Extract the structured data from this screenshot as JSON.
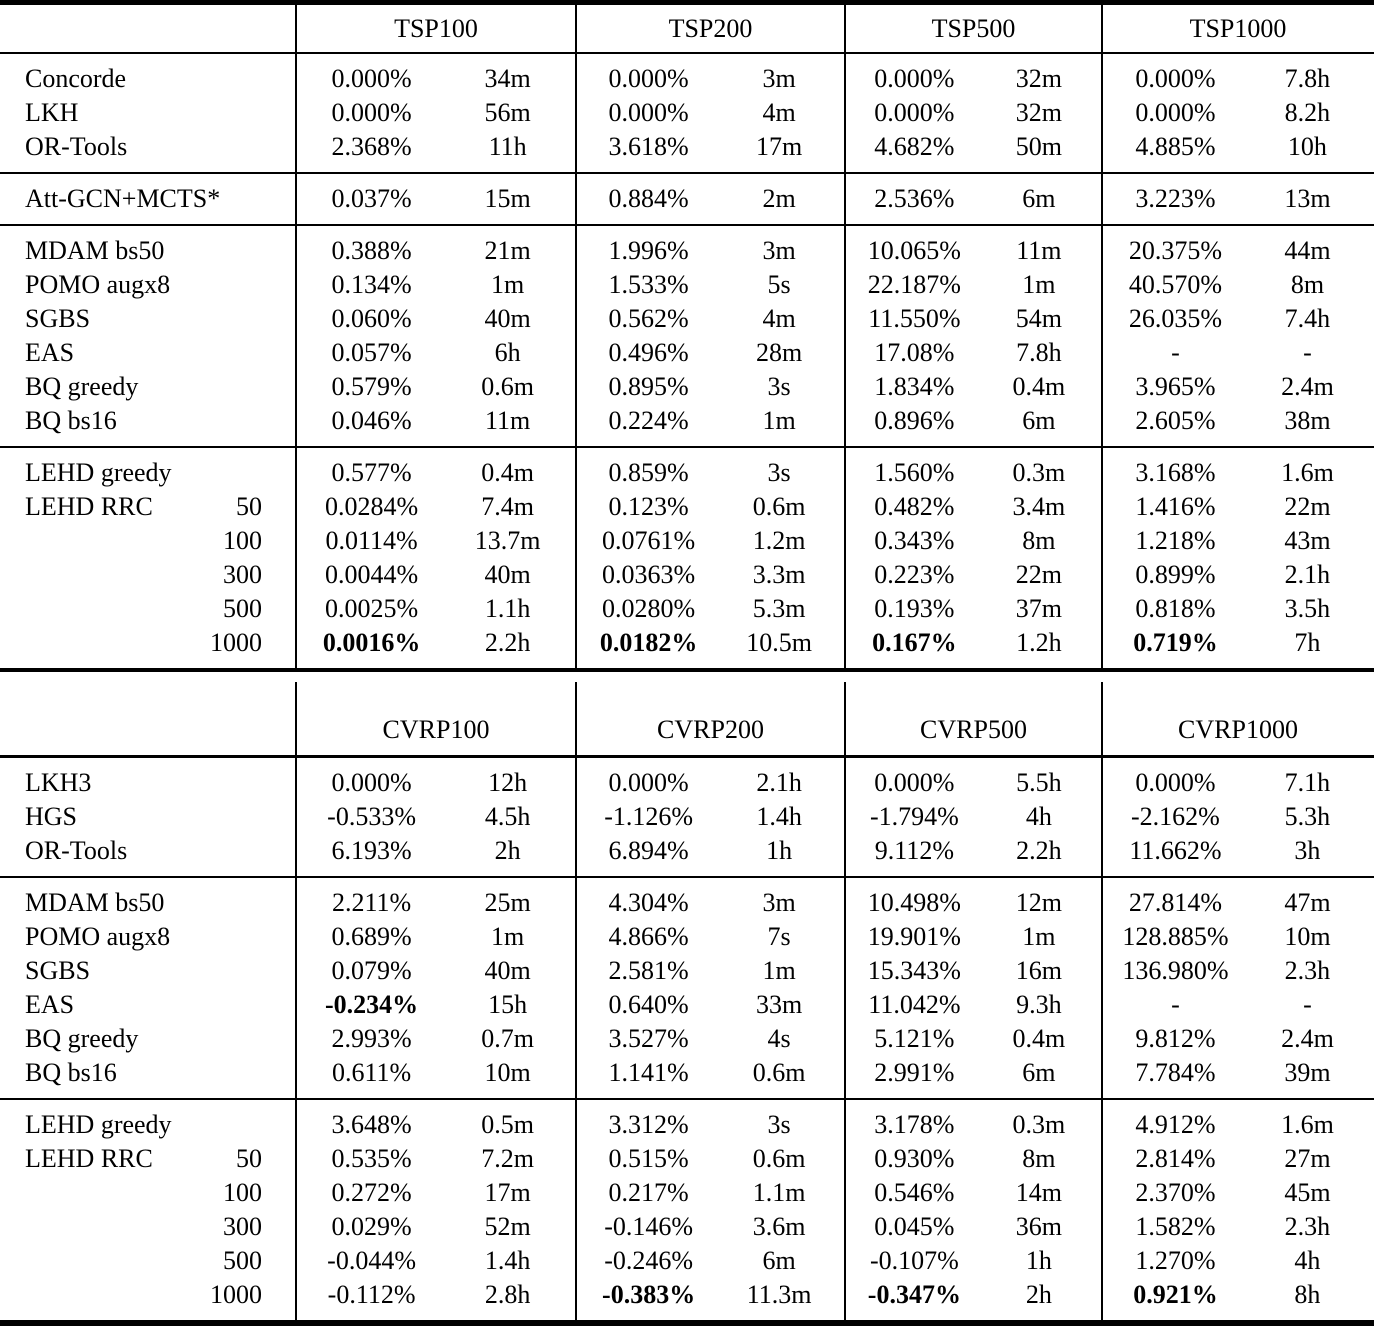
{
  "page": {
    "background": "#ffffff",
    "text_color": "#000000"
  },
  "tables": [
    {
      "name": "tsp",
      "columns": [
        "TSP100",
        "TSP200",
        "TSP500",
        "TSP1000"
      ],
      "sections": [
        {
          "rows": [
            {
              "label": "Concorde",
              "cells": [
                {
                  "gap": "0.000%",
                  "time": "34m"
                },
                {
                  "gap": "0.000%",
                  "time": "3m"
                },
                {
                  "gap": "0.000%",
                  "time": "32m"
                },
                {
                  "gap": "0.000%",
                  "time": "7.8h"
                }
              ]
            },
            {
              "label": "LKH",
              "cells": [
                {
                  "gap": "0.000%",
                  "time": "56m"
                },
                {
                  "gap": "0.000%",
                  "time": "4m"
                },
                {
                  "gap": "0.000%",
                  "time": "32m"
                },
                {
                  "gap": "0.000%",
                  "time": "8.2h"
                }
              ]
            },
            {
              "label": "OR-Tools",
              "cells": [
                {
                  "gap": "2.368%",
                  "time": "11h"
                },
                {
                  "gap": "3.618%",
                  "time": "17m"
                },
                {
                  "gap": "4.682%",
                  "time": "50m"
                },
                {
                  "gap": "4.885%",
                  "time": "10h"
                }
              ]
            }
          ]
        },
        {
          "rows": [
            {
              "label": "Att-GCN+MCTS*",
              "cells": [
                {
                  "gap": "0.037%",
                  "time": "15m"
                },
                {
                  "gap": "0.884%",
                  "time": "2m"
                },
                {
                  "gap": "2.536%",
                  "time": "6m"
                },
                {
                  "gap": "3.223%",
                  "time": "13m"
                }
              ]
            }
          ]
        },
        {
          "rows": [
            {
              "label": "MDAM bs50",
              "cells": [
                {
                  "gap": "0.388%",
                  "time": "21m"
                },
                {
                  "gap": "1.996%",
                  "time": "3m"
                },
                {
                  "gap": "10.065%",
                  "time": "11m"
                },
                {
                  "gap": "20.375%",
                  "time": "44m"
                }
              ]
            },
            {
              "label": "POMO augx8",
              "cells": [
                {
                  "gap": "0.134%",
                  "time": "1m"
                },
                {
                  "gap": "1.533%",
                  "time": "5s"
                },
                {
                  "gap": "22.187%",
                  "time": "1m"
                },
                {
                  "gap": "40.570%",
                  "time": "8m"
                }
              ]
            },
            {
              "label": "SGBS",
              "cells": [
                {
                  "gap": "0.060%",
                  "time": "40m"
                },
                {
                  "gap": "0.562%",
                  "time": "4m"
                },
                {
                  "gap": "11.550%",
                  "time": "54m"
                },
                {
                  "gap": "26.035%",
                  "time": "7.4h"
                }
              ]
            },
            {
              "label": "EAS",
              "cells": [
                {
                  "gap": "0.057%",
                  "time": "6h"
                },
                {
                  "gap": "0.496%",
                  "time": "28m"
                },
                {
                  "gap": "17.08%",
                  "time": "7.8h"
                },
                {
                  "gap": "-",
                  "time": "-"
                }
              ]
            },
            {
              "label": "BQ greedy",
              "cells": [
                {
                  "gap": "0.579%",
                  "time": "0.6m"
                },
                {
                  "gap": "0.895%",
                  "time": "3s"
                },
                {
                  "gap": "1.834%",
                  "time": "0.4m"
                },
                {
                  "gap": "3.965%",
                  "time": "2.4m"
                }
              ]
            },
            {
              "label": "BQ bs16",
              "cells": [
                {
                  "gap": "0.046%",
                  "time": "11m"
                },
                {
                  "gap": "0.224%",
                  "time": "1m"
                },
                {
                  "gap": "0.896%",
                  "time": "6m"
                },
                {
                  "gap": "2.605%",
                  "time": "38m"
                }
              ]
            }
          ]
        },
        {
          "rows": [
            {
              "label": "LEHD greedy",
              "cells": [
                {
                  "gap": "0.577%",
                  "time": "0.4m"
                },
                {
                  "gap": "0.859%",
                  "time": "3s"
                },
                {
                  "gap": "1.560%",
                  "time": "0.3m"
                },
                {
                  "gap": "3.168%",
                  "time": "1.6m"
                }
              ]
            },
            {
              "label": "LEHD RRC",
              "iter": "50",
              "cells": [
                {
                  "gap": "0.0284%",
                  "time": "7.4m"
                },
                {
                  "gap": "0.123%",
                  "time": "0.6m"
                },
                {
                  "gap": "0.482%",
                  "time": "3.4m"
                },
                {
                  "gap": "1.416%",
                  "time": "22m"
                }
              ]
            },
            {
              "label": "",
              "iter": "100",
              "cells": [
                {
                  "gap": "0.0114%",
                  "time": "13.7m"
                },
                {
                  "gap": "0.0761%",
                  "time": "1.2m"
                },
                {
                  "gap": "0.343%",
                  "time": "8m"
                },
                {
                  "gap": "1.218%",
                  "time": "43m"
                }
              ]
            },
            {
              "label": "",
              "iter": "300",
              "cells": [
                {
                  "gap": "0.0044%",
                  "time": "40m"
                },
                {
                  "gap": "0.0363%",
                  "time": "3.3m"
                },
                {
                  "gap": "0.223%",
                  "time": "22m"
                },
                {
                  "gap": "0.899%",
                  "time": "2.1h"
                }
              ]
            },
            {
              "label": "",
              "iter": "500",
              "cells": [
                {
                  "gap": "0.0025%",
                  "time": "1.1h"
                },
                {
                  "gap": "0.0280%",
                  "time": "5.3m"
                },
                {
                  "gap": "0.193%",
                  "time": "37m"
                },
                {
                  "gap": "0.818%",
                  "time": "3.5h"
                }
              ]
            },
            {
              "label": "",
              "iter": "1000",
              "cells": [
                {
                  "gap": "0.0016%",
                  "time": "2.2h",
                  "bold": true
                },
                {
                  "gap": "0.0182%",
                  "time": "10.5m",
                  "bold": true
                },
                {
                  "gap": "0.167%",
                  "time": "1.2h",
                  "bold": true
                },
                {
                  "gap": "0.719%",
                  "time": "7h",
                  "bold": true
                }
              ]
            }
          ]
        }
      ]
    },
    {
      "name": "cvrp",
      "columns": [
        "CVRP100",
        "CVRP200",
        "CVRP500",
        "CVRP1000"
      ],
      "sections": [
        {
          "rows": [
            {
              "label": "LKH3",
              "cells": [
                {
                  "gap": "0.000%",
                  "time": "12h"
                },
                {
                  "gap": "0.000%",
                  "time": "2.1h"
                },
                {
                  "gap": "0.000%",
                  "time": "5.5h"
                },
                {
                  "gap": "0.000%",
                  "time": "7.1h"
                }
              ]
            },
            {
              "label": "HGS",
              "cells": [
                {
                  "gap": "-0.533%",
                  "time": "4.5h"
                },
                {
                  "gap": "-1.126%",
                  "time": "1.4h"
                },
                {
                  "gap": "-1.794%",
                  "time": "4h"
                },
                {
                  "gap": "-2.162%",
                  "time": "5.3h"
                }
              ]
            },
            {
              "label": "OR-Tools",
              "cells": [
                {
                  "gap": "6.193%",
                  "time": "2h"
                },
                {
                  "gap": "6.894%",
                  "time": "1h"
                },
                {
                  "gap": "9.112%",
                  "time": "2.2h"
                },
                {
                  "gap": "11.662%",
                  "time": "3h"
                }
              ]
            }
          ]
        },
        {
          "rows": [
            {
              "label": "MDAM bs50",
              "cells": [
                {
                  "gap": "2.211%",
                  "time": "25m"
                },
                {
                  "gap": "4.304%",
                  "time": "3m"
                },
                {
                  "gap": "10.498%",
                  "time": "12m"
                },
                {
                  "gap": "27.814%",
                  "time": "47m"
                }
              ]
            },
            {
              "label": "POMO augx8",
              "cells": [
                {
                  "gap": "0.689%",
                  "time": "1m"
                },
                {
                  "gap": "4.866%",
                  "time": "7s"
                },
                {
                  "gap": "19.901%",
                  "time": "1m"
                },
                {
                  "gap": "128.885%",
                  "time": "10m"
                }
              ]
            },
            {
              "label": "SGBS",
              "cells": [
                {
                  "gap": "0.079%",
                  "time": "40m"
                },
                {
                  "gap": "2.581%",
                  "time": "1m"
                },
                {
                  "gap": "15.343%",
                  "time": "16m"
                },
                {
                  "gap": "136.980%",
                  "time": "2.3h"
                }
              ]
            },
            {
              "label": "EAS",
              "cells": [
                {
                  "gap": "-0.234%",
                  "time": "15h",
                  "bold": true
                },
                {
                  "gap": "0.640%",
                  "time": "33m"
                },
                {
                  "gap": "11.042%",
                  "time": "9.3h"
                },
                {
                  "gap": "-",
                  "time": "-"
                }
              ]
            },
            {
              "label": "BQ greedy",
              "cells": [
                {
                  "gap": "2.993%",
                  "time": "0.7m"
                },
                {
                  "gap": "3.527%",
                  "time": "4s"
                },
                {
                  "gap": "5.121%",
                  "time": "0.4m"
                },
                {
                  "gap": "9.812%",
                  "time": "2.4m"
                }
              ]
            },
            {
              "label": "BQ bs16",
              "cells": [
                {
                  "gap": "0.611%",
                  "time": "10m"
                },
                {
                  "gap": "1.141%",
                  "time": "0.6m"
                },
                {
                  "gap": "2.991%",
                  "time": "6m"
                },
                {
                  "gap": "7.784%",
                  "time": "39m"
                }
              ]
            }
          ]
        },
        {
          "rows": [
            {
              "label": "LEHD greedy",
              "cells": [
                {
                  "gap": "3.648%",
                  "time": "0.5m"
                },
                {
                  "gap": "3.312%",
                  "time": "3s"
                },
                {
                  "gap": "3.178%",
                  "time": "0.3m"
                },
                {
                  "gap": "4.912%",
                  "time": "1.6m"
                }
              ]
            },
            {
              "label": "LEHD RRC",
              "iter": "50",
              "cells": [
                {
                  "gap": "0.535%",
                  "time": "7.2m"
                },
                {
                  "gap": "0.515%",
                  "time": "0.6m"
                },
                {
                  "gap": "0.930%",
                  "time": "8m"
                },
                {
                  "gap": "2.814%",
                  "time": "27m"
                }
              ]
            },
            {
              "label": "",
              "iter": "100",
              "cells": [
                {
                  "gap": "0.272%",
                  "time": "17m"
                },
                {
                  "gap": "0.217%",
                  "time": "1.1m"
                },
                {
                  "gap": "0.546%",
                  "time": "14m"
                },
                {
                  "gap": "2.370%",
                  "time": "45m"
                }
              ]
            },
            {
              "label": "",
              "iter": "300",
              "cells": [
                {
                  "gap": "0.029%",
                  "time": "52m"
                },
                {
                  "gap": "-0.146%",
                  "time": "3.6m"
                },
                {
                  "gap": "0.045%",
                  "time": "36m"
                },
                {
                  "gap": "1.582%",
                  "time": "2.3h"
                }
              ]
            },
            {
              "label": "",
              "iter": "500",
              "cells": [
                {
                  "gap": "-0.044%",
                  "time": "1.4h"
                },
                {
                  "gap": "-0.246%",
                  "time": "6m"
                },
                {
                  "gap": "-0.107%",
                  "time": "1h"
                },
                {
                  "gap": "1.270%",
                  "time": "4h"
                }
              ]
            },
            {
              "label": "",
              "iter": "1000",
              "cells": [
                {
                  "gap": "-0.112%",
                  "time": "2.8h"
                },
                {
                  "gap": "-0.383%",
                  "time": "11.3m",
                  "bold": true
                },
                {
                  "gap": "-0.347%",
                  "time": "2h",
                  "bold": true
                },
                {
                  "gap": "0.921%",
                  "time": "8h",
                  "bold": true
                }
              ]
            }
          ]
        }
      ]
    }
  ]
}
